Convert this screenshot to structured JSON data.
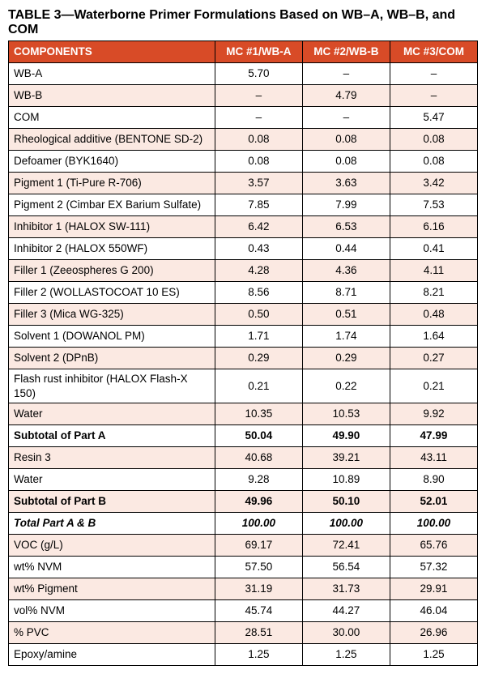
{
  "caption": "TABLE 3—Waterborne Primer Formulations Based on WB–A, WB–B, and COM",
  "headers": [
    "COMPONENTS",
    "MC #1/WB-A",
    "MC #2/WB-B",
    "MC #3/COM"
  ],
  "colors": {
    "header_bg": "#d84b27",
    "header_fg": "#ffffff",
    "tint_bg": "#fbe9e2",
    "plain_bg": "#ffffff",
    "border": "#000000",
    "text": "#000000"
  },
  "typography": {
    "caption_fontsize": 16,
    "cell_fontsize": 13.5,
    "family": "Arial Narrow"
  },
  "column_widths_pct": [
    44,
    18.66,
    18.66,
    18.66
  ],
  "rows": [
    {
      "label": "WB-A",
      "vals": [
        "5.70",
        "–",
        "–"
      ],
      "style": "plain"
    },
    {
      "label": "WB-B",
      "vals": [
        "–",
        "4.79",
        "–"
      ],
      "style": "tint"
    },
    {
      "label": "COM",
      "vals": [
        "–",
        "–",
        "5.47"
      ],
      "style": "plain"
    },
    {
      "label": "Rheological additive (BENTONE SD-2)",
      "vals": [
        "0.08",
        "0.08",
        "0.08"
      ],
      "style": "tint"
    },
    {
      "label": "Defoamer (BYK1640)",
      "vals": [
        "0.08",
        "0.08",
        "0.08"
      ],
      "style": "plain"
    },
    {
      "label": "Pigment 1 (Ti-Pure R-706)",
      "vals": [
        "3.57",
        "3.63",
        "3.42"
      ],
      "style": "tint"
    },
    {
      "label": "Pigment 2 (Cimbar EX Barium Sulfate)",
      "vals": [
        "7.85",
        "7.99",
        "7.53"
      ],
      "style": "plain"
    },
    {
      "label": "Inhibitor 1 (HALOX SW-111)",
      "vals": [
        "6.42",
        "6.53",
        "6.16"
      ],
      "style": "tint"
    },
    {
      "label": "Inhibitor 2 (HALOX 550WF)",
      "vals": [
        "0.43",
        "0.44",
        "0.41"
      ],
      "style": "plain"
    },
    {
      "label": "Filler 1 (Zeeospheres G 200)",
      "vals": [
        "4.28",
        "4.36",
        "4.11"
      ],
      "style": "tint"
    },
    {
      "label": "Filler 2 (WOLLASTOCOAT 10 ES)",
      "vals": [
        "8.56",
        "8.71",
        "8.21"
      ],
      "style": "plain"
    },
    {
      "label": "Filler 3 (Mica WG-325)",
      "vals": [
        "0.50",
        "0.51",
        "0.48"
      ],
      "style": "tint"
    },
    {
      "label": "Solvent 1 (DOWANOL PM)",
      "vals": [
        "1.71",
        "1.74",
        "1.64"
      ],
      "style": "plain"
    },
    {
      "label": "Solvent 2 (DPnB)",
      "vals": [
        "0.29",
        "0.29",
        "0.27"
      ],
      "style": "tint"
    },
    {
      "label": "Flash rust inhibitor (HALOX Flash-X 150)",
      "vals": [
        "0.21",
        "0.22",
        "0.21"
      ],
      "style": "plain"
    },
    {
      "label": "Water",
      "vals": [
        "10.35",
        "10.53",
        "9.92"
      ],
      "style": "tint"
    },
    {
      "label": "Subtotal of Part A",
      "vals": [
        "50.04",
        "49.90",
        "47.99"
      ],
      "style": "plain subtotal"
    },
    {
      "label": "Resin 3",
      "vals": [
        "40.68",
        "39.21",
        "43.11"
      ],
      "style": "tint"
    },
    {
      "label": "Water",
      "vals": [
        "9.28",
        "10.89",
        "8.90"
      ],
      "style": "plain"
    },
    {
      "label": "Subtotal of Part B",
      "vals": [
        "49.96",
        "50.10",
        "52.01"
      ],
      "style": "tint subtotal"
    },
    {
      "label": "Total Part A & B",
      "vals": [
        "100.00",
        "100.00",
        "100.00"
      ],
      "style": "plain total"
    },
    {
      "label": "VOC (g/L)",
      "vals": [
        "69.17",
        "72.41",
        "65.76"
      ],
      "style": "tint"
    },
    {
      "label": "wt% NVM",
      "vals": [
        "57.50",
        "56.54",
        "57.32"
      ],
      "style": "plain"
    },
    {
      "label": "wt% Pigment",
      "vals": [
        "31.19",
        "31.73",
        "29.91"
      ],
      "style": "tint"
    },
    {
      "label": "vol% NVM",
      "vals": [
        "45.74",
        "44.27",
        "46.04"
      ],
      "style": "plain"
    },
    {
      "label": "% PVC",
      "vals": [
        "28.51",
        "30.00",
        "26.96"
      ],
      "style": "tint"
    },
    {
      "label": "Epoxy/amine",
      "vals": [
        "1.25",
        "1.25",
        "1.25"
      ],
      "style": "plain"
    }
  ]
}
